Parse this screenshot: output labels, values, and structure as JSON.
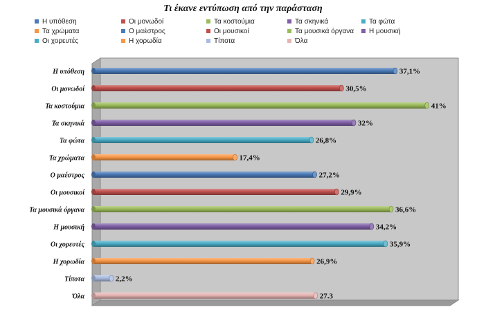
{
  "chart_data": {
    "type": "bar",
    "orientation": "horizontal",
    "title": "Τι έκανε εντύπωση από την παράσταση",
    "categories": [
      "Η υπόθεση",
      "Οι μονωδοί",
      "Τα κοστούμια",
      "Τα σκηνικά",
      "Τα φώτα",
      "Τα χρώματα",
      "Ο μαέστρος",
      "Οι μουσικοί",
      "Τα μουσικά όργανα",
      "Η μουσική",
      "Οι χορευτές",
      "Η χορωδία",
      "Τίποτα",
      "Όλα"
    ],
    "values": [
      37.1,
      30.5,
      41,
      32,
      26.8,
      17.4,
      27.2,
      29.9,
      36.6,
      34.2,
      35.9,
      26.9,
      2.2,
      27.3
    ],
    "value_labels": [
      "37,1%",
      "30,5%",
      "41%",
      "32%",
      "26,8%",
      "17,4%",
      "27,2%",
      "29,9%",
      "36,6%",
      "34,2%",
      "35,9%",
      "26,9%",
      "2,2%",
      "27.3"
    ],
    "colors": [
      "#4a7ab8",
      "#c0504d",
      "#9bbb59",
      "#7f5fa6",
      "#4aacc6",
      "#f79646",
      "#4a7ab8",
      "#c0504d",
      "#9bbb59",
      "#7f5fa6",
      "#4aacc6",
      "#f79646",
      "#a9bbe0",
      "#e6b3b3"
    ],
    "xlim": [
      0,
      44
    ],
    "legend": {
      "position": "top",
      "entries": [
        "Η υπόθεση",
        "Οι μονωδοί",
        "Τα κοστούμια",
        "Τα σκηνικά",
        "Τα φώτα",
        "Τα χρώματα",
        "Ο μαέστρος",
        "Οι μουσικοί",
        "Τα μουσικά όργανα",
        "Η μουσική",
        "Οι χορευτές",
        "Η χορωδία",
        "Τίποτα",
        "Όλα"
      ]
    },
    "plot_background": "#c8c8c8",
    "grid": false
  }
}
